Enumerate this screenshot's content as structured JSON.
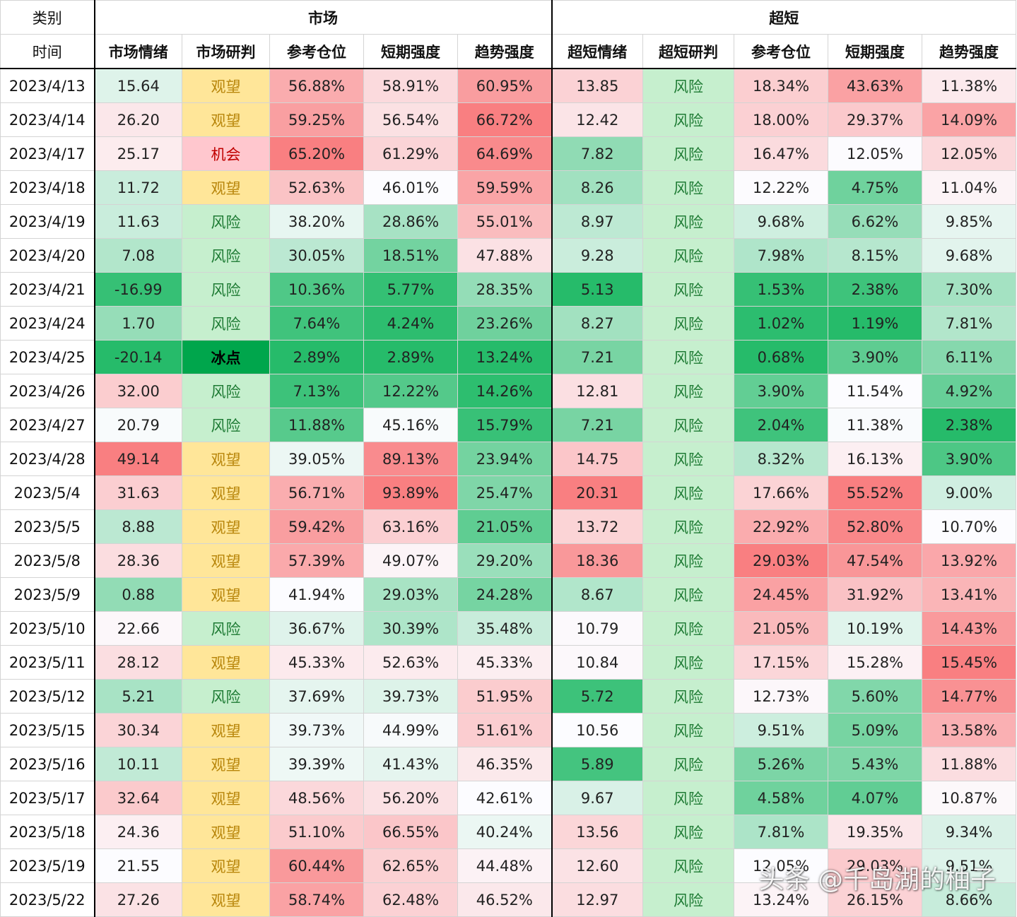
{
  "header": {
    "category_label": "类别",
    "time_label": "时间",
    "group_market": "市场",
    "group_ultra": "超短",
    "columns": [
      "市场情绪",
      "市场研判",
      "参考仓位",
      "短期强度",
      "趋势强度",
      "超短情绪",
      "超短研判",
      "参考仓位",
      "短期强度",
      "趋势强度"
    ]
  },
  "rows": [
    {
      "date": "2023/4/13",
      "m": [
        "15.64",
        "观望",
        "56.88%",
        "58.91%",
        "60.95%"
      ],
      "u": [
        "13.85",
        "风险",
        "18.34%",
        "43.63%",
        "11.38%"
      ]
    },
    {
      "date": "2023/4/14",
      "m": [
        "26.20",
        "观望",
        "59.25%",
        "56.54%",
        "66.72%"
      ],
      "u": [
        "12.42",
        "风险",
        "18.00%",
        "29.37%",
        "14.09%"
      ]
    },
    {
      "date": "2023/4/17",
      "m": [
        "25.17",
        "机会",
        "65.20%",
        "61.29%",
        "64.69%"
      ],
      "u": [
        "7.82",
        "风险",
        "16.47%",
        "12.05%",
        "12.05%"
      ]
    },
    {
      "date": "2023/4/18",
      "m": [
        "11.72",
        "观望",
        "52.63%",
        "46.01%",
        "59.59%"
      ],
      "u": [
        "8.26",
        "风险",
        "12.22%",
        "4.75%",
        "11.04%"
      ]
    },
    {
      "date": "2023/4/19",
      "m": [
        "11.63",
        "风险",
        "38.20%",
        "28.86%",
        "55.01%"
      ],
      "u": [
        "8.97",
        "风险",
        "9.68%",
        "6.62%",
        "9.85%"
      ]
    },
    {
      "date": "2023/4/20",
      "m": [
        "7.08",
        "风险",
        "30.05%",
        "18.51%",
        "47.88%"
      ],
      "u": [
        "9.28",
        "风险",
        "7.98%",
        "8.15%",
        "9.68%"
      ]
    },
    {
      "date": "2023/4/21",
      "m": [
        "-16.99",
        "风险",
        "10.36%",
        "5.77%",
        "28.35%"
      ],
      "u": [
        "5.13",
        "风险",
        "1.53%",
        "2.38%",
        "7.30%"
      ]
    },
    {
      "date": "2023/4/24",
      "m": [
        "1.70",
        "风险",
        "7.64%",
        "4.24%",
        "23.26%"
      ],
      "u": [
        "8.27",
        "风险",
        "1.02%",
        "1.19%",
        "7.81%"
      ]
    },
    {
      "date": "2023/4/25",
      "m": [
        "-20.14",
        "冰点",
        "2.89%",
        "2.89%",
        "13.24%"
      ],
      "u": [
        "7.21",
        "风险",
        "0.68%",
        "3.90%",
        "6.11%"
      ]
    },
    {
      "date": "2023/4/26",
      "m": [
        "32.00",
        "风险",
        "7.13%",
        "12.22%",
        "14.26%"
      ],
      "u": [
        "12.81",
        "风险",
        "3.90%",
        "11.54%",
        "4.92%"
      ]
    },
    {
      "date": "2023/4/27",
      "m": [
        "20.79",
        "风险",
        "11.88%",
        "45.16%",
        "15.79%"
      ],
      "u": [
        "7.21",
        "风险",
        "2.04%",
        "11.38%",
        "2.38%"
      ]
    },
    {
      "date": "2023/4/28",
      "m": [
        "49.14",
        "观望",
        "39.05%",
        "89.13%",
        "23.94%"
      ],
      "u": [
        "14.75",
        "风险",
        "8.32%",
        "16.13%",
        "3.90%"
      ]
    },
    {
      "date": "2023/5/4",
      "m": [
        "31.63",
        "观望",
        "56.71%",
        "93.89%",
        "25.47%"
      ],
      "u": [
        "20.31",
        "风险",
        "17.66%",
        "55.52%",
        "9.00%"
      ]
    },
    {
      "date": "2023/5/5",
      "m": [
        "8.88",
        "观望",
        "59.42%",
        "63.16%",
        "21.05%"
      ],
      "u": [
        "13.72",
        "风险",
        "22.92%",
        "52.80%",
        "10.70%"
      ]
    },
    {
      "date": "2023/5/8",
      "m": [
        "28.36",
        "观望",
        "57.39%",
        "49.07%",
        "29.20%"
      ],
      "u": [
        "18.36",
        "风险",
        "29.03%",
        "47.54%",
        "13.92%"
      ]
    },
    {
      "date": "2023/5/9",
      "m": [
        "0.88",
        "观望",
        "41.94%",
        "29.03%",
        "24.28%"
      ],
      "u": [
        "8.67",
        "风险",
        "24.45%",
        "31.92%",
        "13.41%"
      ]
    },
    {
      "date": "2023/5/10",
      "m": [
        "22.66",
        "风险",
        "36.67%",
        "30.39%",
        "35.48%"
      ],
      "u": [
        "10.79",
        "风险",
        "21.05%",
        "10.19%",
        "14.43%"
      ]
    },
    {
      "date": "2023/5/11",
      "m": [
        "28.12",
        "观望",
        "45.33%",
        "52.63%",
        "45.33%"
      ],
      "u": [
        "10.84",
        "风险",
        "17.15%",
        "15.28%",
        "15.45%"
      ]
    },
    {
      "date": "2023/5/12",
      "m": [
        "5.21",
        "风险",
        "37.69%",
        "39.73%",
        "51.95%"
      ],
      "u": [
        "5.72",
        "风险",
        "12.73%",
        "5.60%",
        "14.77%"
      ]
    },
    {
      "date": "2023/5/15",
      "m": [
        "30.34",
        "观望",
        "39.73%",
        "44.99%",
        "51.61%"
      ],
      "u": [
        "10.56",
        "风险",
        "9.51%",
        "5.09%",
        "13.58%"
      ]
    },
    {
      "date": "2023/5/16",
      "m": [
        "10.11",
        "观望",
        "39.39%",
        "41.43%",
        "46.35%"
      ],
      "u": [
        "5.89",
        "风险",
        "5.26%",
        "5.43%",
        "11.88%"
      ]
    },
    {
      "date": "2023/5/17",
      "m": [
        "32.64",
        "观望",
        "48.56%",
        "56.20%",
        "42.61%"
      ],
      "u": [
        "9.67",
        "风险",
        "4.58%",
        "4.07%",
        "10.87%"
      ]
    },
    {
      "date": "2023/5/18",
      "m": [
        "24.36",
        "观望",
        "51.10%",
        "66.55%",
        "40.24%"
      ],
      "u": [
        "13.56",
        "风险",
        "7.81%",
        "19.35%",
        "9.34%"
      ]
    },
    {
      "date": "2023/5/19",
      "m": [
        "21.55",
        "观望",
        "60.44%",
        "62.65%",
        "44.48%"
      ],
      "u": [
        "12.60",
        "风险",
        "12.05%",
        "29.03%",
        "9.51%"
      ]
    },
    {
      "date": "2023/5/22",
      "m": [
        "27.26",
        "观望",
        "58.74%",
        "62.48%",
        "46.52%"
      ],
      "u": [
        "12.97",
        "风险",
        "13.24%",
        "26.15%",
        "8.66%"
      ]
    }
  ],
  "judgment_classes": {
    "观望": "j-watch",
    "机会": "j-opp",
    "风险": "j-risk",
    "冰点": "j-freeze"
  },
  "heat_colors": {
    "high": "#f8696b",
    "mid": "#fcfcff",
    "low": "#00b050"
  },
  "watermark": "头条 @千岛湖的柚子"
}
